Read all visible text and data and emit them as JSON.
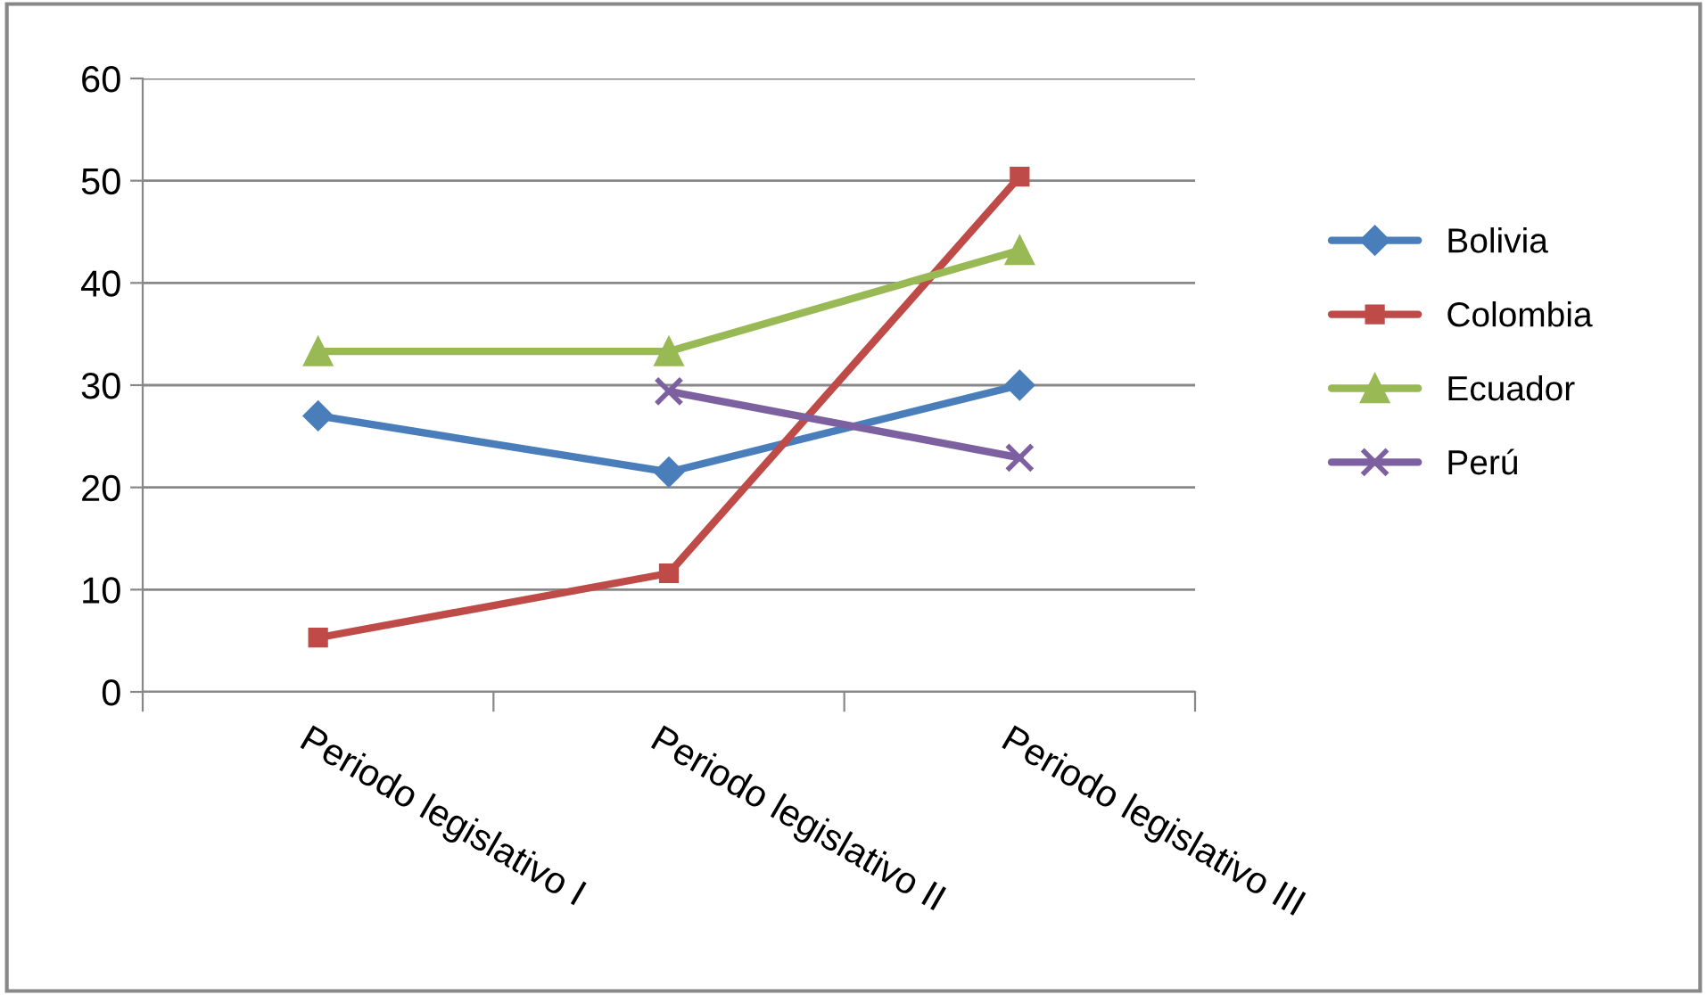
{
  "chart_data": {
    "type": "line",
    "categories": [
      "Periodo legislativo I",
      "Periodo legislativo II",
      "Periodo legislativo III"
    ],
    "ylim": [
      0,
      60
    ],
    "yticks": [
      0,
      10,
      20,
      30,
      40,
      50,
      60
    ],
    "grid": "y",
    "legend": "right",
    "series": [
      {
        "name": "Bolivia",
        "color": "#4a7ebb",
        "marker": "diamond",
        "values": [
          27,
          21.5,
          30
        ]
      },
      {
        "name": "Colombia",
        "color": "#be4b48",
        "marker": "square",
        "values": [
          5.3,
          11.6,
          50.4
        ]
      },
      {
        "name": "Ecuador",
        "color": "#98b954",
        "marker": "triangle",
        "values": [
          33.3,
          33.3,
          43.2
        ]
      },
      {
        "name": "Perú",
        "color": "#7d60a0",
        "marker": "cross",
        "values": [
          null,
          29.4,
          22.9
        ]
      }
    ]
  }
}
